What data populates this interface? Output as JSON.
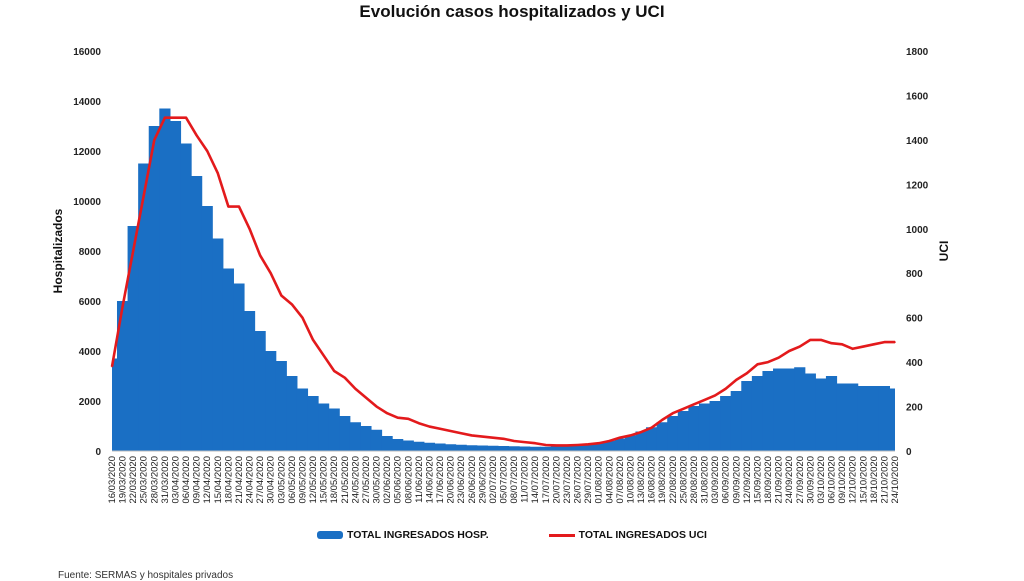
{
  "chart_data": {
    "type": "bar+line",
    "title": "Evolución casos hospitalizados y UCI",
    "ylabel": "Hospitalizados",
    "y2label": "UCI",
    "ylim": [
      0,
      16000
    ],
    "y2lim": [
      0,
      1800
    ],
    "yticks": [
      0,
      2000,
      4000,
      6000,
      8000,
      10000,
      12000,
      14000,
      16000
    ],
    "y2ticks": [
      0,
      200,
      400,
      600,
      800,
      1000,
      1200,
      1400,
      1600,
      1800
    ],
    "grid": false,
    "legend_position": "bottom",
    "categories": [
      "16/03/2020",
      "19/03/2020",
      "22/03/2020",
      "25/03/2020",
      "28/03/2020",
      "31/03/2020",
      "03/04/2020",
      "06/04/2020",
      "09/04/2020",
      "12/04/2020",
      "15/04/2020",
      "18/04/2020",
      "21/04/2020",
      "24/04/2020",
      "27/04/2020",
      "30/04/2020",
      "03/05/2020",
      "06/05/2020",
      "09/05/2020",
      "12/05/2020",
      "15/05/2020",
      "18/05/2020",
      "21/05/2020",
      "24/05/2020",
      "27/05/2020",
      "30/05/2020",
      "02/06/2020",
      "05/06/2020",
      "08/06/2020",
      "11/06/2020",
      "14/06/2020",
      "17/06/2020",
      "20/06/2020",
      "23/06/2020",
      "26/06/2020",
      "29/06/2020",
      "02/07/2020",
      "05/07/2020",
      "08/07/2020",
      "11/07/2020",
      "14/07/2020",
      "17/07/2020",
      "20/07/2020",
      "23/07/2020",
      "26/07/2020",
      "29/07/2020",
      "01/08/2020",
      "04/08/2020",
      "07/08/2020",
      "10/08/2020",
      "13/08/2020",
      "16/08/2020",
      "19/08/2020",
      "22/08/2020",
      "25/08/2020",
      "28/08/2020",
      "31/08/2020",
      "03/09/2020",
      "06/09/2020",
      "09/09/2020",
      "12/09/2020",
      "15/09/2020",
      "18/09/2020",
      "21/09/2020",
      "24/09/2020",
      "27/09/2020",
      "30/09/2020",
      "03/10/2020",
      "06/10/2020",
      "09/10/2020",
      "12/10/2020",
      "15/10/2020",
      "18/10/2020",
      "21/10/2020",
      "24/10/2020"
    ],
    "series": [
      {
        "name": "TOTAL INGRESADOS HOSP.",
        "type": "bar",
        "axis": "left",
        "color": "#1a6fc4",
        "values": [
          3700,
          6000,
          9000,
          11500,
          13000,
          13700,
          13200,
          12300,
          11000,
          9800,
          8500,
          7300,
          6700,
          5600,
          4800,
          4000,
          3600,
          3000,
          2500,
          2200,
          1900,
          1700,
          1400,
          1150,
          1000,
          850,
          600,
          480,
          420,
          370,
          330,
          300,
          270,
          250,
          230,
          220,
          210,
          200,
          190,
          180,
          170,
          170,
          180,
          190,
          220,
          260,
          320,
          400,
          500,
          620,
          780,
          950,
          1150,
          1400,
          1600,
          1800,
          1900,
          2000,
          2200,
          2400,
          2800,
          3000,
          3200,
          3300,
          3300,
          3350,
          3100,
          2900,
          3000,
          2700,
          2700,
          2600,
          2600,
          2600,
          2500
        ]
      },
      {
        "name": "TOTAL INGRESADOS UCI",
        "type": "line",
        "axis": "right",
        "color": "#e31a1c",
        "values": [
          380,
          650,
          900,
          1150,
          1400,
          1500,
          1500,
          1500,
          1420,
          1350,
          1250,
          1100,
          1100,
          1000,
          880,
          800,
          700,
          660,
          600,
          500,
          430,
          360,
          330,
          280,
          240,
          200,
          170,
          150,
          145,
          125,
          110,
          100,
          90,
          80,
          70,
          65,
          60,
          55,
          45,
          40,
          35,
          27,
          25,
          25,
          27,
          30,
          35,
          45,
          60,
          70,
          85,
          105,
          140,
          170,
          190,
          210,
          230,
          250,
          280,
          320,
          350,
          390,
          400,
          420,
          450,
          470,
          500,
          500,
          485,
          480,
          460,
          470,
          480,
          490,
          490
        ]
      }
    ],
    "source": "Fuente: SERMAS y hospitales privados"
  }
}
